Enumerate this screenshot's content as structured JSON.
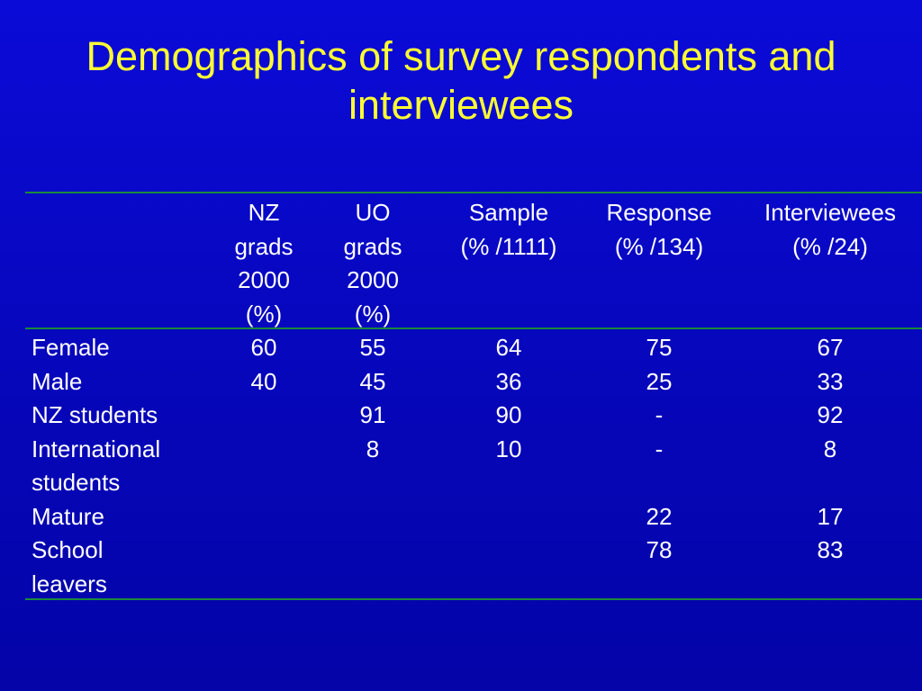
{
  "header": {
    "title": "Demographics of survey respondents and interviewees"
  },
  "table": {
    "columns": [
      [
        "NZ",
        "grads",
        "2000",
        "(%)"
      ],
      [
        "UO",
        "grads",
        "2000",
        "(%)"
      ],
      [
        "Sample",
        "(% /1111)"
      ],
      [
        "Response",
        "(% /134)"
      ],
      [
        "Interviewees",
        "(% /24)"
      ]
    ],
    "rows": [
      {
        "label": [
          "Female"
        ],
        "cells": [
          60,
          55,
          64,
          75,
          67
        ]
      },
      {
        "label": [
          "Male"
        ],
        "cells": [
          40,
          45,
          36,
          25,
          33
        ]
      },
      {
        "label": [
          "NZ students"
        ],
        "cells": [
          null,
          91,
          90,
          "-",
          92
        ]
      },
      {
        "label": [
          "International",
          "students"
        ],
        "cells": [
          null,
          8,
          10,
          "-",
          8
        ]
      },
      {
        "label": [
          "Mature"
        ],
        "cells": [
          null,
          null,
          null,
          22,
          17
        ]
      },
      {
        "label": [
          "School",
          "leavers"
        ],
        "cells": [
          null,
          null,
          null,
          78,
          83
        ]
      }
    ]
  }
}
